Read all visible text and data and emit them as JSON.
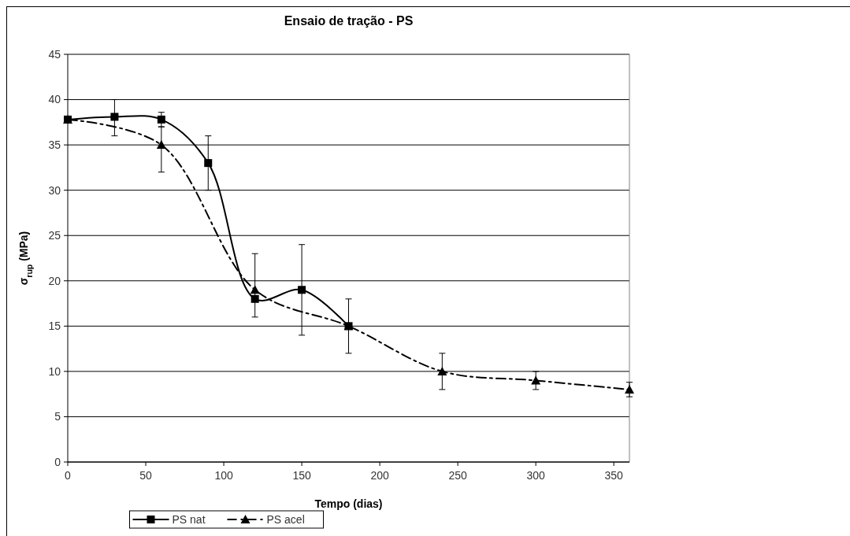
{
  "chart_data": {
    "type": "line",
    "title": "Ensaio de tração - PS",
    "xlabel": "Tempo (dias)",
    "ylabel": "σ$_{rup}$ (MPa)",
    "xlim": [
      0,
      360
    ],
    "xticks": [
      0,
      50,
      100,
      150,
      200,
      250,
      300,
      350
    ],
    "ylim": [
      0,
      45
    ],
    "yticks": [
      0,
      5,
      10,
      15,
      20,
      25,
      30,
      35,
      40,
      45
    ],
    "grid": "y",
    "legend": "bottom",
    "series": [
      {
        "name": "PS nat",
        "color": "#000000",
        "marker": "square",
        "line_style": "solid",
        "x": [
          0,
          30,
          60,
          90,
          120,
          150,
          180
        ],
        "values": [
          37.8,
          38.1,
          37.8,
          33,
          18,
          19,
          15
        ],
        "errors": [
          null,
          [
            36,
            40
          ],
          [
            37,
            38.6
          ],
          [
            30,
            36
          ],
          [
            16,
            23
          ],
          [
            14,
            24
          ],
          [
            12,
            18
          ]
        ]
      },
      {
        "name": "PS acel",
        "color": "#000000",
        "marker": "triangle",
        "line_style": "dashed",
        "x": [
          0,
          60,
          120,
          180,
          240,
          300,
          360
        ],
        "values": [
          37.8,
          35,
          19,
          15,
          10,
          9,
          8
        ],
        "errors": [
          null,
          [
            32,
            37
          ],
          null,
          null,
          [
            8,
            12
          ],
          [
            8,
            10
          ],
          0.8
        ]
      }
    ]
  }
}
